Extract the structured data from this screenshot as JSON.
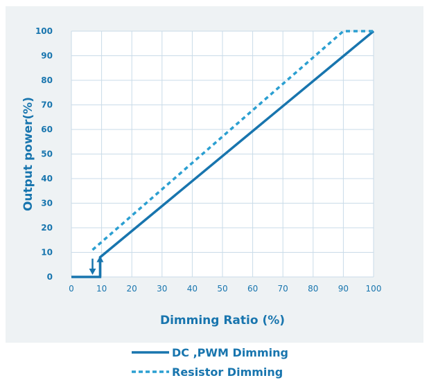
{
  "chart_data": {
    "type": "line",
    "xlabel": "Dimming Ratio (%)",
    "ylabel": "Output power(%)",
    "xlim": [
      0,
      100
    ],
    "ylim": [
      0,
      100
    ],
    "x_ticks": [
      "0",
      "10",
      "20",
      "30",
      "40",
      "50",
      "60",
      "70",
      "80",
      "90",
      "100"
    ],
    "y_ticks": [
      "0",
      "10",
      "20",
      "30",
      "40",
      "50",
      "60",
      "70",
      "80",
      "90",
      "100"
    ],
    "grid": true,
    "series": [
      {
        "name": "DC ,PWM Dimming",
        "style": "solid",
        "color": "#1875ae",
        "points": [
          [
            0,
            0
          ],
          [
            9.5,
            0
          ],
          [
            9.5,
            8
          ],
          [
            100,
            100
          ]
        ],
        "hysteresis": {
          "down_x": 7,
          "up_x": 9.5,
          "low_y": 0,
          "high_y": 8
        }
      },
      {
        "name": "Resistor Dimming",
        "style": "dashed",
        "color": "#2b9fd1",
        "points": [
          [
            7,
            11
          ],
          [
            90,
            100
          ],
          [
            100,
            100
          ]
        ]
      }
    ]
  },
  "legend": {
    "items": [
      {
        "label": "DC ,PWM Dimming",
        "style": "solid"
      },
      {
        "label": "Resistor Dimming",
        "style": "dashed"
      }
    ]
  }
}
